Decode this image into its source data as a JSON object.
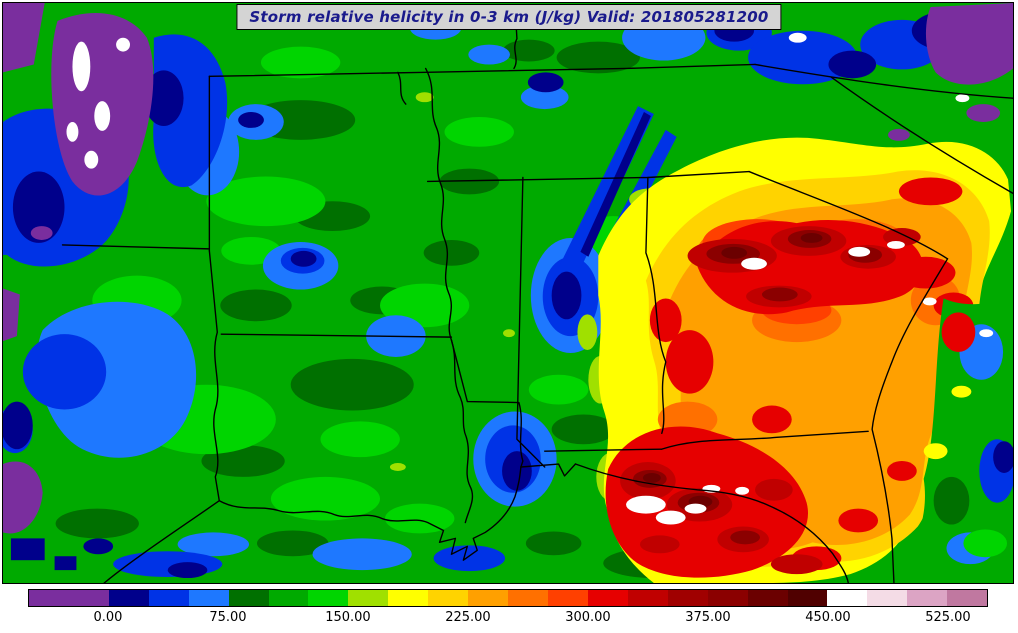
{
  "title": {
    "text": "Storm relative helicity in 0-3 km (J/kg) Valid: 201805281200"
  },
  "palette": {
    "purple": "#7A2E9E",
    "blue_dark": "#00008B",
    "blue": "#0033E6",
    "blue_light": "#1E78FF",
    "green_dark": "#007000",
    "green": "#00AA00",
    "green_light": "#00D500",
    "yellow_green": "#A0E000",
    "yellow": "#FFFF00",
    "gold": "#FFD300",
    "orange": "#FFA000",
    "orange_deep": "#FF7000",
    "orange_red": "#FF4000",
    "red": "#E60000",
    "red_dark": "#C00000",
    "red_deep": "#A00000",
    "maroon": "#8B0000",
    "maroon_deep": "#6B0000",
    "maroon_darkest": "#500000",
    "white": "#FFFFFF",
    "pink_pale": "#F4DCE6",
    "pink": "#DCA4C4",
    "rose": "#C078A0",
    "title_text": "#1A1A8C",
    "title_bg": "#D4D4D4"
  },
  "chart_data": {
    "type": "heatmap",
    "title": "Storm relative helicity in 0-3 km (J/kg)",
    "valid_time": "201805281200",
    "units": "J/kg",
    "region_shown": "Southeastern United States with state borders (Mississippi Valley to Atlantic coast, Gulf of Mexico at bottom)",
    "colorbar": {
      "orientation": "horizontal",
      "min": -50,
      "max": 550,
      "level_step": 25,
      "tick_values": [
        0,
        75,
        150,
        225,
        300,
        375,
        450,
        525
      ],
      "tick_labels": [
        "0.00",
        "75.00",
        "150.00",
        "225.00",
        "300.00",
        "375.00",
        "450.00",
        "525.00"
      ],
      "segment_colors": [
        "#7A2E9E",
        "#7A2E9E",
        "#00008B",
        "#0033E6",
        "#1E78FF",
        "#007000",
        "#00AA00",
        "#00D500",
        "#A0E000",
        "#FFFF00",
        "#FFD300",
        "#FFA000",
        "#FF7000",
        "#FF4000",
        "#E60000",
        "#C00000",
        "#A00000",
        "#8B0000",
        "#6B0000",
        "#500000",
        "#FFFFFF",
        "#F4DCE6",
        "#DCA4C4",
        "#C078A0"
      ]
    },
    "estimated_field_features": [
      {
        "area": "north-central Georgia into upstate South Carolina",
        "helicity_jkg": "300 to 525+ (dark red cores, small white >450 maxima)"
      },
      {
        "area": "Florida Panhandle and adjacent Gulf waters",
        "helicity_jkg": "300 to 525+ (dark red cores, white >450 maxima)"
      },
      {
        "area": "central Georgia, southeast Alabama, Georgia coastal plain",
        "helicity_jkg": "150-300 (yellow-orange)"
      },
      {
        "area": "Mississippi, Louisiana, Arkansas, Tennessee, central Alabama",
        "helicity_jkg": "0-150 (greens with blue pockets)"
      },
      {
        "area": "far northwest corner (Ozarks), far left edge, northeast corner",
        "helicity_jkg": "below 0 (purple, local white pockets)"
      }
    ]
  }
}
